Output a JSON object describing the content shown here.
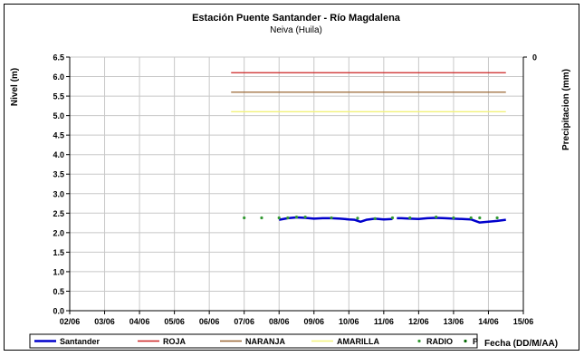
{
  "chart_data": {
    "type": "line",
    "title": "Estación Puente Santander - Río Magdalena",
    "subtitle": "Neiva (Huila)",
    "ylabel": "Nivel (m)",
    "y2label": "Precipitacion (mm)",
    "xlabel": "Fecha (DD/M/AA)",
    "ylim": [
      0,
      6.5
    ],
    "y_ticks": [
      "0.0",
      "0.5",
      "1.0",
      "1.5",
      "2.0",
      "2.5",
      "3.0",
      "3.5",
      "4.0",
      "4.5",
      "5.0",
      "5.5",
      "6.0",
      "6.5"
    ],
    "y2_ticks": [
      "0"
    ],
    "x_ticks": [
      "02/06",
      "03/06",
      "04/06",
      "05/06",
      "06/06",
      "07/06",
      "08/06",
      "09/06",
      "10/06",
      "11/06",
      "12/06",
      "13/06",
      "14/06",
      "15/06"
    ],
    "grid": true,
    "thresholds": [
      {
        "name": "ROJA",
        "value": 6.1,
        "from": "06/06 15:00",
        "to": "14/06 12:00",
        "color": "#cc2222"
      },
      {
        "name": "NARANJA",
        "value": 5.6,
        "from": "06/06 15:00",
        "to": "14/06 12:00",
        "color": "#996633"
      },
      {
        "name": "AMARILLA",
        "value": 5.1,
        "from": "06/06 15:00",
        "to": "14/06 12:00",
        "color": "#f2f27a"
      }
    ],
    "series": [
      {
        "name": "Santander",
        "color": "#0000cc",
        "style": "line",
        "x": [
          "08/06 00:00",
          "08/06 06:00",
          "08/06 12:00",
          "08/06 18:00",
          "09/06 00:00",
          "09/06 06:00",
          "09/06 12:00",
          "09/06 18:00",
          "10/06 00:00",
          "10/06 04:00",
          "10/06 08:00",
          "10/06 12:00",
          "10/06 18:00",
          "11/06 00:00",
          "11/06 06:00"
        ],
        "y": [
          2.33,
          2.37,
          2.39,
          2.38,
          2.36,
          2.37,
          2.37,
          2.36,
          2.34,
          2.33,
          2.28,
          2.33,
          2.36,
          2.34,
          2.35
        ]
      },
      {
        "name": "Santander",
        "color": "#0000cc",
        "style": "line",
        "x": [
          "11/06 09:00",
          "11/06 12:00",
          "11/06 18:00",
          "12/06 00:00",
          "12/06 06:00",
          "12/06 12:00",
          "12/06 18:00",
          "13/06 00:00",
          "13/06 06:00",
          "13/06 12:00",
          "13/06 18:00",
          "14/06 00:00",
          "14/06 06:00",
          "14/06 12:00"
        ],
        "y": [
          2.37,
          2.37,
          2.36,
          2.35,
          2.37,
          2.38,
          2.37,
          2.36,
          2.35,
          2.34,
          2.26,
          2.28,
          2.3,
          2.33
        ]
      },
      {
        "name": "RADIO",
        "color": "#339933",
        "style": "points",
        "x": [
          "07/06 00:00",
          "07/06 12:00",
          "08/06 00:00",
          "08/06 06:00",
          "08/06 12:00",
          "08/06 18:00",
          "09/06 12:00",
          "10/06 06:00",
          "10/06 18:00",
          "11/06 06:00",
          "11/06 18:00",
          "12/06 12:00",
          "13/06 00:00",
          "13/06 12:00",
          "13/06 18:00",
          "14/06 06:00"
        ],
        "y": [
          2.38,
          2.38,
          2.38,
          2.38,
          2.4,
          2.4,
          2.38,
          2.37,
          2.36,
          2.38,
          2.38,
          2.4,
          2.38,
          2.38,
          2.38,
          2.38
        ]
      },
      {
        "name": "P",
        "color": "#006600",
        "style": "points",
        "x": [],
        "y": []
      }
    ],
    "legend": {
      "position": "bottom",
      "entries": [
        {
          "name": "Santander",
          "color": "#0000cc",
          "style": "thick-line"
        },
        {
          "name": "ROJA",
          "color": "#cc2222",
          "style": "line"
        },
        {
          "name": "NARANJA",
          "color": "#996633",
          "style": "line"
        },
        {
          "name": "AMARILLA",
          "color": "#f2f27a",
          "style": "line"
        },
        {
          "name": "RADIO",
          "color": "#339933",
          "style": "dot"
        },
        {
          "name": "P",
          "color": "#006600",
          "style": "dot"
        }
      ]
    }
  }
}
